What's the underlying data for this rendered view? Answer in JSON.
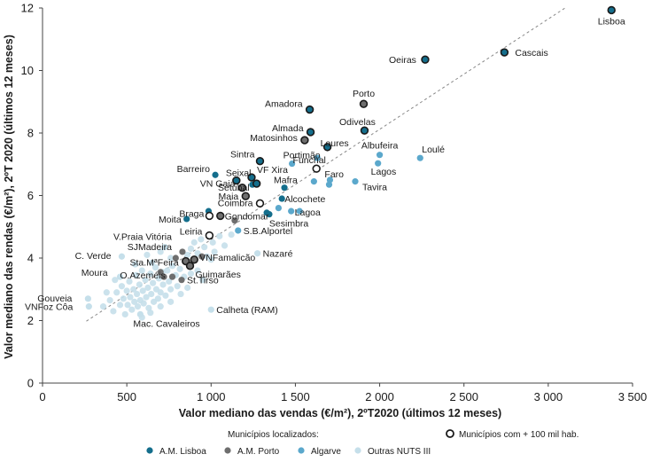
{
  "chart_data": {
    "type": "scatter",
    "title": "",
    "xlabel": "Valor mediano das vendas (€/m²), 2ºT2020 (últimos 12 meses)",
    "ylabel": "Valor mediano das rendas (€/m²), 2ºT 2020 (últimos 12 meses)",
    "xlim": [
      0,
      3500
    ],
    "ylim": [
      0,
      12
    ],
    "xticks": [
      0,
      500,
      1000,
      1500,
      2000,
      2500,
      3000,
      3500
    ],
    "xtick_labels": [
      "0",
      "500",
      "1 000",
      "1 500",
      "2 000",
      "2 500",
      "3 000",
      "3 500"
    ],
    "yticks": [
      0,
      2,
      4,
      6,
      8,
      10,
      12
    ],
    "ytick_labels": [
      "0",
      "2",
      "4",
      "6",
      "8",
      "10",
      "12"
    ],
    "grid": false,
    "trendline": {
      "x": [
        260,
        3100
      ],
      "y": [
        1.98,
        12.0
      ],
      "style": "dashed"
    },
    "colors": {
      "lisboa": "#146e8c",
      "porto": "#6e6e6e",
      "algarve": "#5ba8cc",
      "outras": "#c5dfea",
      "large_ring": "#1a1a1a",
      "trend": "#888888"
    },
    "legend": {
      "title": "Municípios localizados:",
      "large_label": "Municípios com + 100 mil hab.",
      "items": [
        {
          "key": "lisboa",
          "label": "A.M. Lisboa"
        },
        {
          "key": "porto",
          "label": "A.M. Porto"
        },
        {
          "key": "algarve",
          "label": "Algarve"
        },
        {
          "key": "outras",
          "label": "Outras NUTS  III"
        }
      ]
    },
    "labeled_points": [
      {
        "name": "Lisboa",
        "x": 3375,
        "y": 11.93,
        "g": "lisboa",
        "big": true
      },
      {
        "name": "Cascais",
        "x": 2740,
        "y": 10.58,
        "g": "lisboa",
        "big": true
      },
      {
        "name": "Oeiras",
        "x": 2270,
        "y": 10.35,
        "g": "lisboa",
        "big": true
      },
      {
        "name": "Amadora",
        "x": 1585,
        "y": 8.75,
        "g": "lisboa",
        "big": true
      },
      {
        "name": "Porto",
        "x": 1905,
        "y": 8.93,
        "g": "porto",
        "big": true
      },
      {
        "name": "Almada",
        "x": 1590,
        "y": 8.03,
        "g": "lisboa",
        "big": true
      },
      {
        "name": "Odivelas",
        "x": 1910,
        "y": 8.08,
        "g": "lisboa",
        "big": true
      },
      {
        "name": "Matosinhos",
        "x": 1555,
        "y": 7.77,
        "g": "porto",
        "big": true
      },
      {
        "name": "Loures",
        "x": 1690,
        "y": 7.55,
        "g": "lisboa",
        "big": true
      },
      {
        "name": "Albufeira",
        "x": 2000,
        "y": 7.3,
        "g": "algarve",
        "big": false
      },
      {
        "name": "Loulé",
        "x": 2240,
        "y": 7.2,
        "g": "algarve",
        "big": false
      },
      {
        "name": "Sintra",
        "x": 1290,
        "y": 7.1,
        "g": "lisboa",
        "big": true
      },
      {
        "name": "Portimão",
        "x": 1480,
        "y": 7.02,
        "g": "algarve",
        "big": false
      },
      {
        "name": "Funchal",
        "x": 1625,
        "y": 6.86,
        "g": "outras",
        "big": true
      },
      {
        "name": "Lagos",
        "x": 1990,
        "y": 7.03,
        "g": "algarve",
        "big": false
      },
      {
        "name": "Barreiro",
        "x": 1025,
        "y": 6.66,
        "g": "lisboa",
        "big": false
      },
      {
        "name": "Seixal",
        "x": 1150,
        "y": 6.48,
        "g": "lisboa",
        "big": true
      },
      {
        "name": "VF Xira",
        "x": 1240,
        "y": 6.58,
        "g": "lisboa",
        "big": true
      },
      {
        "name": "Faro",
        "x": 1705,
        "y": 6.5,
        "g": "algarve",
        "big": false
      },
      {
        "name": "Tavira",
        "x": 1855,
        "y": 6.45,
        "g": "algarve",
        "big": false
      },
      {
        "name": "VN Gaia",
        "x": 1185,
        "y": 6.25,
        "g": "porto",
        "big": true
      },
      {
        "name": "Mafra",
        "x": 1435,
        "y": 6.25,
        "g": "lisboa",
        "big": false
      },
      {
        "name": "Setúbal",
        "x": 1270,
        "y": 6.38,
        "g": "lisboa",
        "big": true
      },
      {
        "name": "Maia",
        "x": 1205,
        "y": 5.98,
        "g": "porto",
        "big": true
      },
      {
        "name": "Alcochete",
        "x": 1420,
        "y": 5.9,
        "g": "lisboa",
        "big": false
      },
      {
        "name": "Coimbra",
        "x": 1290,
        "y": 5.75,
        "g": "outras",
        "big": true
      },
      {
        "name": "Lagoa",
        "x": 1475,
        "y": 5.5,
        "g": "algarve",
        "big": false
      },
      {
        "name": "Braga",
        "x": 990,
        "y": 5.35,
        "g": "outras",
        "big": true
      },
      {
        "name": "Gondomar",
        "x": 1055,
        "y": 5.35,
        "g": "porto",
        "big": true
      },
      {
        "name": "Sesimbra",
        "x": 1345,
        "y": 5.4,
        "g": "lisboa",
        "big": false
      },
      {
        "name": "Moita",
        "x": 855,
        "y": 5.25,
        "g": "lisboa",
        "big": false
      },
      {
        "name": "Leiria",
        "x": 990,
        "y": 4.72,
        "g": "outras",
        "big": true
      },
      {
        "name": "S.B.Alportel",
        "x": 1160,
        "y": 4.88,
        "g": "algarve",
        "big": false
      },
      {
        "name": "V.Praia Vitória",
        "x": 725,
        "y": 4.35,
        "g": "outras",
        "big": false
      },
      {
        "name": "SJMadeira",
        "x": 830,
        "y": 4.2,
        "g": "porto",
        "big": false
      },
      {
        "name": "C. Verde",
        "x": 470,
        "y": 4.05,
        "g": "outras",
        "big": false
      },
      {
        "name": "Nazaré",
        "x": 1275,
        "y": 4.15,
        "g": "outras",
        "big": false
      },
      {
        "name": "Sta.MªFeira",
        "x": 850,
        "y": 3.9,
        "g": "porto",
        "big": true
      },
      {
        "name": "VNFamalicão",
        "x": 900,
        "y": 3.95,
        "g": "porto",
        "big": true
      },
      {
        "name": "Guimarães",
        "x": 875,
        "y": 3.75,
        "g": "porto",
        "big": true
      },
      {
        "name": "Moura",
        "x": 460,
        "y": 3.4,
        "g": "outras",
        "big": false
      },
      {
        "name": "St.Tirso",
        "x": 825,
        "y": 3.3,
        "g": "porto",
        "big": false
      },
      {
        "name": "O.Azeméis",
        "x": 720,
        "y": 3.4,
        "g": "porto",
        "big": false
      },
      {
        "name": "Gouveia",
        "x": 270,
        "y": 2.7,
        "g": "outras",
        "big": false
      },
      {
        "name": "VNFoz Côa",
        "x": 275,
        "y": 2.45,
        "g": "outras",
        "big": false
      },
      {
        "name": "Calheta (RAM)",
        "x": 1000,
        "y": 2.35,
        "g": "outras",
        "big": false
      },
      {
        "name": "Mac. Cavaleiros",
        "x": 580,
        "y": 2.2,
        "g": "outras",
        "big": false
      }
    ],
    "unlabeled_points": [
      {
        "g": "outras",
        "x": 360,
        "y": 2.45
      },
      {
        "g": "outras",
        "x": 400,
        "y": 2.65
      },
      {
        "g": "outras",
        "x": 420,
        "y": 2.3
      },
      {
        "g": "outras",
        "x": 440,
        "y": 2.9
      },
      {
        "g": "outras",
        "x": 460,
        "y": 2.5
      },
      {
        "g": "outras",
        "x": 470,
        "y": 3.1
      },
      {
        "g": "outras",
        "x": 480,
        "y": 2.7
      },
      {
        "g": "outras",
        "x": 490,
        "y": 2.2
      },
      {
        "g": "outras",
        "x": 500,
        "y": 2.95
      },
      {
        "g": "outras",
        "x": 505,
        "y": 2.5
      },
      {
        "g": "outras",
        "x": 515,
        "y": 3.25
      },
      {
        "g": "outras",
        "x": 520,
        "y": 2.75
      },
      {
        "g": "outras",
        "x": 530,
        "y": 2.35
      },
      {
        "g": "outras",
        "x": 540,
        "y": 3.0
      },
      {
        "g": "outras",
        "x": 545,
        "y": 2.6
      },
      {
        "g": "outras",
        "x": 555,
        "y": 3.45
      },
      {
        "g": "outras",
        "x": 560,
        "y": 2.85
      },
      {
        "g": "outras",
        "x": 565,
        "y": 2.45
      },
      {
        "g": "outras",
        "x": 575,
        "y": 3.15
      },
      {
        "g": "outras",
        "x": 580,
        "y": 2.65
      },
      {
        "g": "outras",
        "x": 590,
        "y": 3.6
      },
      {
        "g": "outras",
        "x": 595,
        "y": 2.95
      },
      {
        "g": "outras",
        "x": 600,
        "y": 2.55
      },
      {
        "g": "outras",
        "x": 610,
        "y": 3.3
      },
      {
        "g": "outras",
        "x": 615,
        "y": 2.75
      },
      {
        "g": "outras",
        "x": 625,
        "y": 3.05
      },
      {
        "g": "outras",
        "x": 630,
        "y": 2.4
      },
      {
        "g": "outras",
        "x": 640,
        "y": 3.5
      },
      {
        "g": "outras",
        "x": 645,
        "y": 2.85
      },
      {
        "g": "outras",
        "x": 655,
        "y": 3.2
      },
      {
        "g": "outras",
        "x": 660,
        "y": 2.6
      },
      {
        "g": "outras",
        "x": 670,
        "y": 3.7
      },
      {
        "g": "outras",
        "x": 675,
        "y": 3.0
      },
      {
        "g": "outras",
        "x": 685,
        "y": 2.7
      },
      {
        "g": "outras",
        "x": 690,
        "y": 3.35
      },
      {
        "g": "outras",
        "x": 700,
        "y": 2.9
      },
      {
        "g": "outras",
        "x": 710,
        "y": 3.55
      },
      {
        "g": "outras",
        "x": 715,
        "y": 3.15
      },
      {
        "g": "outras",
        "x": 730,
        "y": 2.8
      },
      {
        "g": "outras",
        "x": 740,
        "y": 3.6
      },
      {
        "g": "outras",
        "x": 750,
        "y": 3.25
      },
      {
        "g": "outras",
        "x": 760,
        "y": 3.0
      },
      {
        "g": "outras",
        "x": 770,
        "y": 3.75
      },
      {
        "g": "outras",
        "x": 790,
        "y": 3.45
      },
      {
        "g": "outras",
        "x": 800,
        "y": 3.1
      },
      {
        "g": "outras",
        "x": 815,
        "y": 3.65
      },
      {
        "g": "outras",
        "x": 840,
        "y": 3.4
      },
      {
        "g": "outras",
        "x": 860,
        "y": 4.1
      },
      {
        "g": "outras",
        "x": 880,
        "y": 4.3
      },
      {
        "g": "outras",
        "x": 900,
        "y": 4.5
      },
      {
        "g": "outras",
        "x": 920,
        "y": 4.15
      },
      {
        "g": "outras",
        "x": 940,
        "y": 4.6
      },
      {
        "g": "outras",
        "x": 960,
        "y": 4.35
      },
      {
        "g": "outras",
        "x": 975,
        "y": 4.05
      },
      {
        "g": "outras",
        "x": 1010,
        "y": 4.5
      },
      {
        "g": "outras",
        "x": 1020,
        "y": 4.2
      },
      {
        "g": "outras",
        "x": 1050,
        "y": 4.7
      },
      {
        "g": "outras",
        "x": 1080,
        "y": 4.4
      },
      {
        "g": "outras",
        "x": 620,
        "y": 4.1
      },
      {
        "g": "outras",
        "x": 650,
        "y": 3.85
      },
      {
        "g": "outras",
        "x": 700,
        "y": 4.2
      },
      {
        "g": "outras",
        "x": 760,
        "y": 4.0
      },
      {
        "g": "outras",
        "x": 880,
        "y": 3.5
      },
      {
        "g": "outras",
        "x": 920,
        "y": 3.6
      },
      {
        "g": "outras",
        "x": 950,
        "y": 3.3
      },
      {
        "g": "outras",
        "x": 590,
        "y": 2.1
      },
      {
        "g": "outras",
        "x": 640,
        "y": 2.25
      },
      {
        "g": "outras",
        "x": 700,
        "y": 2.45
      },
      {
        "g": "outras",
        "x": 760,
        "y": 2.6
      },
      {
        "g": "outras",
        "x": 820,
        "y": 2.85
      },
      {
        "g": "outras",
        "x": 860,
        "y": 3.05
      },
      {
        "g": "outras",
        "x": 380,
        "y": 2.9
      },
      {
        "g": "outras",
        "x": 430,
        "y": 3.3
      },
      {
        "g": "outras",
        "x": 550,
        "y": 3.8
      },
      {
        "g": "outras",
        "x": 1120,
        "y": 4.75
      },
      {
        "g": "outras",
        "x": 1000,
        "y": 3.95
      },
      {
        "g": "porto",
        "x": 700,
        "y": 3.55
      },
      {
        "g": "porto",
        "x": 770,
        "y": 3.4
      },
      {
        "g": "porto",
        "x": 790,
        "y": 4.0
      },
      {
        "g": "porto",
        "x": 945,
        "y": 4.05
      },
      {
        "g": "porto",
        "x": 1140,
        "y": 5.2
      },
      {
        "g": "lisboa",
        "x": 985,
        "y": 5.5
      },
      {
        "g": "lisboa",
        "x": 1245,
        "y": 6.35
      },
      {
        "g": "lisboa",
        "x": 1330,
        "y": 5.45
      },
      {
        "g": "algarve",
        "x": 1400,
        "y": 5.6
      },
      {
        "g": "algarve",
        "x": 1525,
        "y": 5.5
      },
      {
        "g": "algarve",
        "x": 1610,
        "y": 6.45
      },
      {
        "g": "algarve",
        "x": 1700,
        "y": 6.35
      },
      {
        "g": "algarve",
        "x": 1630,
        "y": 7.2
      }
    ]
  }
}
